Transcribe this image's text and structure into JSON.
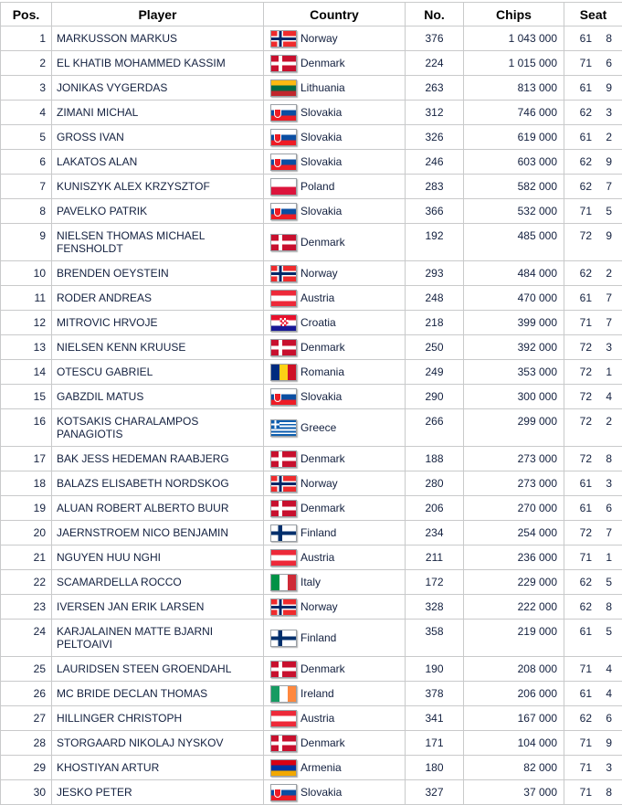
{
  "colors": {
    "grid_line": "#c9cacb",
    "header_text": "#000000",
    "cell_text": "#13203f",
    "background": "#ffffff"
  },
  "table": {
    "columns": [
      {
        "key": "pos",
        "label": "Pos."
      },
      {
        "key": "player",
        "label": "Player"
      },
      {
        "key": "country",
        "label": "Country"
      },
      {
        "key": "no",
        "label": "No."
      },
      {
        "key": "chips",
        "label": "Chips"
      },
      {
        "key": "seat",
        "label": "Seat"
      }
    ],
    "rows": [
      {
        "pos": "1",
        "player": "MARKUSSON MARKUS",
        "country": "Norway",
        "flag": "no",
        "no": "376",
        "chips": "1 043 000",
        "table_no": "61",
        "seat": "8"
      },
      {
        "pos": "2",
        "player": "EL KHATIB MOHAMMED KASSIM",
        "country": "Denmark",
        "flag": "dk",
        "no": "224",
        "chips": "1 015 000",
        "table_no": "71",
        "seat": "6"
      },
      {
        "pos": "3",
        "player": "JONIKAS VYGERDAS",
        "country": "Lithuania",
        "flag": "lt",
        "no": "263",
        "chips": "813 000",
        "table_no": "61",
        "seat": "9"
      },
      {
        "pos": "4",
        "player": "ZIMANI MICHAL",
        "country": "Slovakia",
        "flag": "sk",
        "no": "312",
        "chips": "746 000",
        "table_no": "62",
        "seat": "3"
      },
      {
        "pos": "5",
        "player": "GROSS IVAN",
        "country": "Slovakia",
        "flag": "sk",
        "no": "326",
        "chips": "619 000",
        "table_no": "61",
        "seat": "2"
      },
      {
        "pos": "6",
        "player": "LAKATOS ALAN",
        "country": "Slovakia",
        "flag": "sk",
        "no": "246",
        "chips": "603 000",
        "table_no": "62",
        "seat": "9"
      },
      {
        "pos": "7",
        "player": "KUNISZYK ALEX KRZYSZTOF",
        "country": "Poland",
        "flag": "pl",
        "no": "283",
        "chips": "582 000",
        "table_no": "62",
        "seat": "7"
      },
      {
        "pos": "8",
        "player": "PAVELKO PATRIK",
        "country": "Slovakia",
        "flag": "sk",
        "no": "366",
        "chips": "532 000",
        "table_no": "71",
        "seat": "5"
      },
      {
        "pos": "9",
        "player": "NIELSEN THOMAS MICHAEL\nFENSHOLDT",
        "country": "Denmark",
        "flag": "dk",
        "no": "192",
        "chips": "485 000",
        "table_no": "72",
        "seat": "9"
      },
      {
        "pos": "10",
        "player": "BRENDEN OEYSTEIN",
        "country": "Norway",
        "flag": "no",
        "no": "293",
        "chips": "484 000",
        "table_no": "62",
        "seat": "2"
      },
      {
        "pos": "11",
        "player": "RODER ANDREAS",
        "country": "Austria",
        "flag": "at",
        "no": "248",
        "chips": "470 000",
        "table_no": "61",
        "seat": "7"
      },
      {
        "pos": "12",
        "player": "MITROVIC HRVOJE",
        "country": "Croatia",
        "flag": "hr",
        "no": "218",
        "chips": "399 000",
        "table_no": "71",
        "seat": "7"
      },
      {
        "pos": "13",
        "player": "NIELSEN KENN KRUUSE",
        "country": "Denmark",
        "flag": "dk",
        "no": "250",
        "chips": "392 000",
        "table_no": "72",
        "seat": "3"
      },
      {
        "pos": "14",
        "player": "OTESCU GABRIEL",
        "country": "Romania",
        "flag": "ro",
        "no": "249",
        "chips": "353 000",
        "table_no": "72",
        "seat": "1"
      },
      {
        "pos": "15",
        "player": "GABZDIL MATUS",
        "country": "Slovakia",
        "flag": "sk",
        "no": "290",
        "chips": "300 000",
        "table_no": "72",
        "seat": "4"
      },
      {
        "pos": "16",
        "player": "KOTSAKIS CHARALAMPOS\nPANAGIOTIS",
        "country": "Greece",
        "flag": "gr",
        "no": "266",
        "chips": "299 000",
        "table_no": "72",
        "seat": "2"
      },
      {
        "pos": "17",
        "player": "BAK JESS HEDEMAN RAABJERG",
        "country": "Denmark",
        "flag": "dk",
        "no": "188",
        "chips": "273 000",
        "table_no": "72",
        "seat": "8"
      },
      {
        "pos": "18",
        "player": "BALAZS ELISABETH NORDSKOG",
        "country": "Norway",
        "flag": "no",
        "no": "280",
        "chips": "273 000",
        "table_no": "61",
        "seat": "3"
      },
      {
        "pos": "19",
        "player": "ALUAN ROBERT ALBERTO BUUR",
        "country": "Denmark",
        "flag": "dk",
        "no": "206",
        "chips": "270 000",
        "table_no": "61",
        "seat": "6"
      },
      {
        "pos": "20",
        "player": "JAERNSTROEM NICO BENJAMIN",
        "country": "Finland",
        "flag": "fi",
        "no": "234",
        "chips": "254 000",
        "table_no": "72",
        "seat": "7"
      },
      {
        "pos": "21",
        "player": "NGUYEN HUU NGHI",
        "country": "Austria",
        "flag": "at",
        "no": "211",
        "chips": "236 000",
        "table_no": "71",
        "seat": "1"
      },
      {
        "pos": "22",
        "player": "SCAMARDELLA ROCCO",
        "country": "Italy",
        "flag": "it",
        "no": "172",
        "chips": "229 000",
        "table_no": "62",
        "seat": "5"
      },
      {
        "pos": "23",
        "player": "IVERSEN JAN ERIK LARSEN",
        "country": "Norway",
        "flag": "no",
        "no": "328",
        "chips": "222 000",
        "table_no": "62",
        "seat": "8"
      },
      {
        "pos": "24",
        "player": "KARJALAINEN MATTE BJARNI\nPELTOAIVI",
        "country": "Finland",
        "flag": "fi",
        "no": "358",
        "chips": "219 000",
        "table_no": "61",
        "seat": "5"
      },
      {
        "pos": "25",
        "player": "LAURIDSEN STEEN GROENDAHL",
        "country": "Denmark",
        "flag": "dk",
        "no": "190",
        "chips": "208 000",
        "table_no": "71",
        "seat": "4"
      },
      {
        "pos": "26",
        "player": "MC BRIDE DECLAN THOMAS",
        "country": "Ireland",
        "flag": "ie",
        "no": "378",
        "chips": "206 000",
        "table_no": "61",
        "seat": "4"
      },
      {
        "pos": "27",
        "player": "HILLINGER CHRISTOPH",
        "country": "Austria",
        "flag": "at",
        "no": "341",
        "chips": "167 000",
        "table_no": "62",
        "seat": "6"
      },
      {
        "pos": "28",
        "player": "STORGAARD NIKOLAJ NYSKOV",
        "country": "Denmark",
        "flag": "dk",
        "no": "171",
        "chips": "104 000",
        "table_no": "71",
        "seat": "9"
      },
      {
        "pos": "29",
        "player": "KHOSTIYAN ARTUR",
        "country": "Armenia",
        "flag": "am",
        "no": "180",
        "chips": "82 000",
        "table_no": "71",
        "seat": "3"
      },
      {
        "pos": "30",
        "player": "JESKO PETER",
        "country": "Slovakia",
        "flag": "sk",
        "no": "327",
        "chips": "37 000",
        "table_no": "71",
        "seat": "8"
      }
    ]
  }
}
